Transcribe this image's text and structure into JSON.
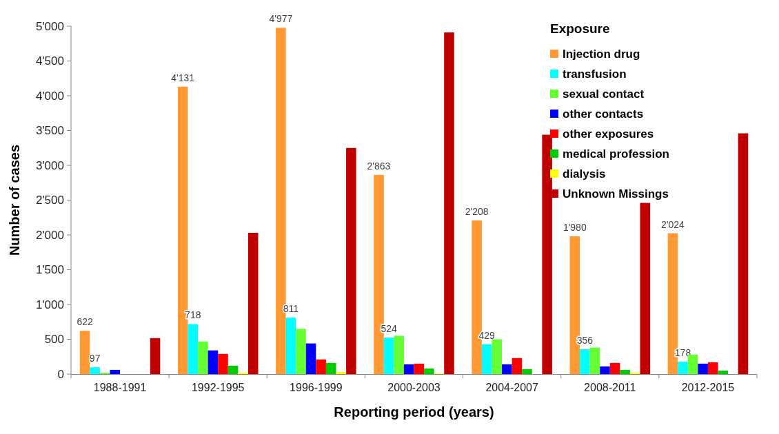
{
  "chart_data": {
    "type": "bar",
    "xlabel": "Reporting period (years)",
    "ylabel": "Number of cases",
    "legend_title": "Exposure",
    "legend": "top right",
    "categories": [
      "1988-1991",
      "1992-1995",
      "1996-1999",
      "2000-2003",
      "2004-2007",
      "2008-2011",
      "2012-2015"
    ],
    "ylim": [
      0,
      5000
    ],
    "yticks": [
      0,
      500,
      {
        "value": 1000,
        "label": "1'000"
      },
      {
        "value": 1500,
        "label": "1'500"
      },
      {
        "value": 2000,
        "label": "2'000"
      },
      {
        "value": 2500,
        "label": "2'500"
      },
      {
        "value": 3000,
        "label": "3'000"
      },
      {
        "value": 3500,
        "label": "3'500"
      },
      {
        "value": 4000,
        "label": "4'000"
      },
      {
        "value": 4500,
        "label": "4'500"
      },
      {
        "value": 5000,
        "label": "5'000"
      }
    ],
    "series": [
      {
        "name": "Injection drug",
        "color": "#ff9933",
        "values": [
          622,
          4131,
          4977,
          2863,
          2208,
          1980,
          2024
        ],
        "value_labels": [
          "622",
          "4'131",
          "4'977",
          "2'863",
          "2'208",
          "1'980",
          "2'024"
        ]
      },
      {
        "name": "transfusion",
        "color": "#00ffff",
        "values": [
          97,
          718,
          811,
          524,
          429,
          356,
          178
        ],
        "value_labels": [
          "97",
          "718",
          "811",
          "524",
          "429",
          "356",
          "178"
        ]
      },
      {
        "name": "sexual contact",
        "color": "#66ff33",
        "values": [
          20,
          470,
          650,
          550,
          500,
          380,
          280
        ]
      },
      {
        "name": "other contacts",
        "color": "#0000ff",
        "values": [
          60,
          340,
          440,
          140,
          140,
          110,
          150
        ]
      },
      {
        "name": "other exposures",
        "color": "#ff0000",
        "values": [
          0,
          290,
          210,
          150,
          230,
          160,
          170
        ]
      },
      {
        "name": "medical profession",
        "color": "#00cc00",
        "values": [
          0,
          120,
          160,
          80,
          70,
          60,
          50
        ]
      },
      {
        "name": "dialysis",
        "color": "#ffff00",
        "values": [
          0,
          20,
          30,
          10,
          0,
          20,
          0
        ]
      },
      {
        "name": "Unknown Missings",
        "color": "#c00000",
        "values": [
          517,
          2030,
          3250,
          4910,
          3440,
          2460,
          3460
        ]
      }
    ]
  }
}
